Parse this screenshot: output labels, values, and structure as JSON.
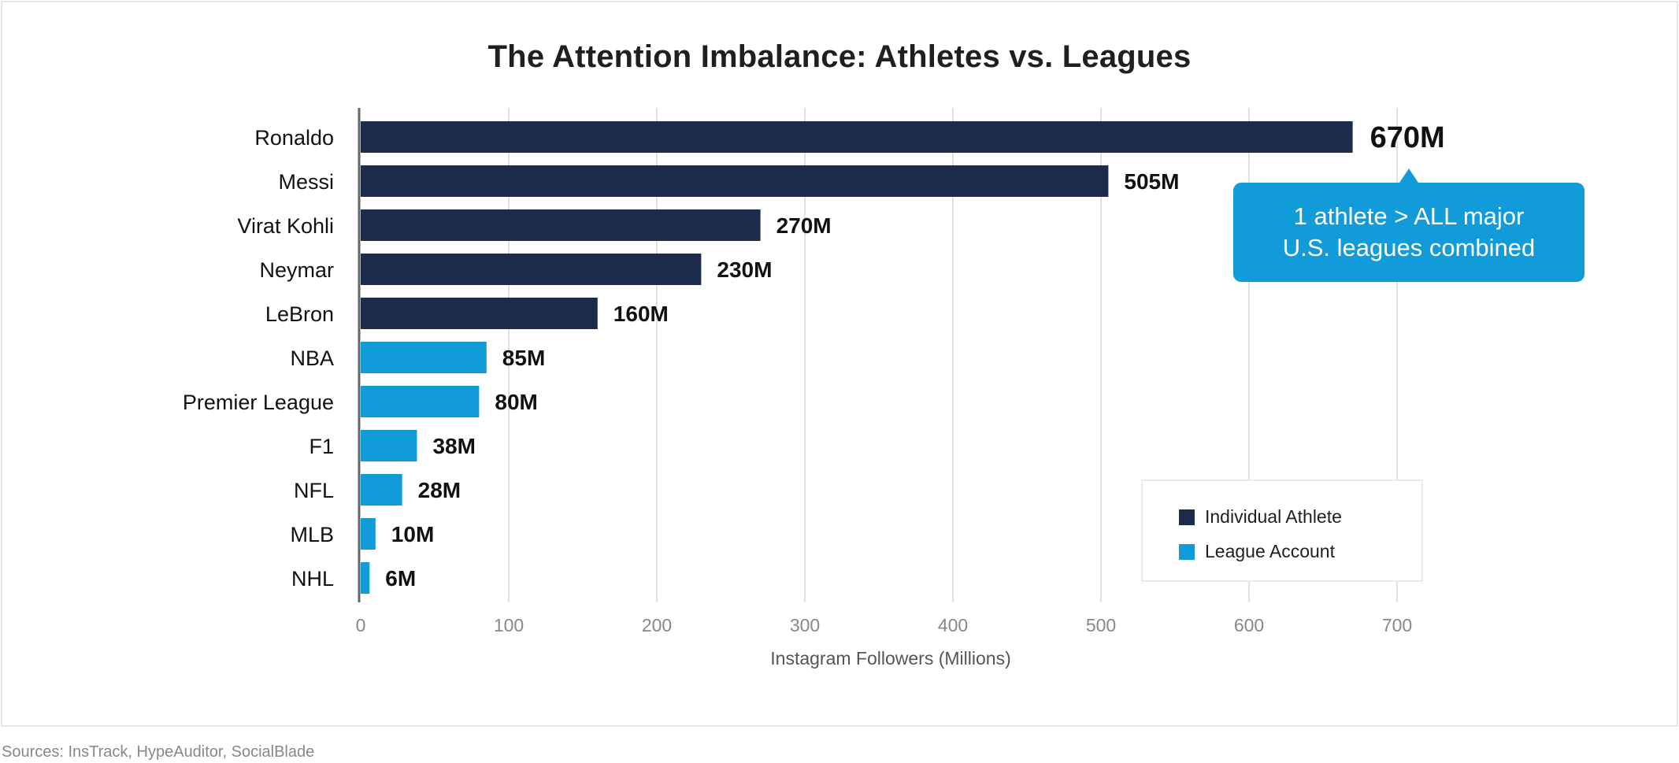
{
  "chart_data": {
    "type": "bar",
    "orientation": "horizontal",
    "title": "The Attention Imbalance: Athletes vs. Leagues",
    "xlabel": "Instagram Followers (Millions)",
    "ylabel": "",
    "xlim": [
      0,
      700
    ],
    "x_ticks": [
      0,
      100,
      200,
      300,
      400,
      500,
      600,
      700
    ],
    "grid": true,
    "categories": [
      "Ronaldo",
      "Messi",
      "Virat Kohli",
      "Neymar",
      "LeBron",
      "NBA",
      "Premier League",
      "F1",
      "NFL",
      "MLB",
      "NHL"
    ],
    "values": [
      670,
      505,
      270,
      230,
      160,
      85,
      80,
      38,
      28,
      10,
      6
    ],
    "value_labels": [
      "670M",
      "505M",
      "270M",
      "230M",
      "160M",
      "85M",
      "80M",
      "38M",
      "28M",
      "10M",
      "6M"
    ],
    "groups": [
      "athlete",
      "athlete",
      "athlete",
      "athlete",
      "athlete",
      "league",
      "league",
      "league",
      "league",
      "league",
      "league"
    ],
    "series": [
      {
        "name": "Individual Athlete",
        "key": "athlete",
        "color": "#1c2b4b"
      },
      {
        "name": "League Account",
        "key": "league",
        "color": "#119bd8"
      }
    ],
    "legend_position": "bottom-right",
    "annotation": {
      "target": "Ronaldo",
      "lines": [
        "1 athlete > ALL major",
        "U.S. leagues combined"
      ]
    }
  },
  "footer": {
    "sources": "Sources: InsTrack, HypeAuditor, SocialBlade"
  },
  "colors": {
    "athlete": "#1c2b4b",
    "league": "#119bd8",
    "grid": "#e2e2e2",
    "axis": "#666666"
  }
}
